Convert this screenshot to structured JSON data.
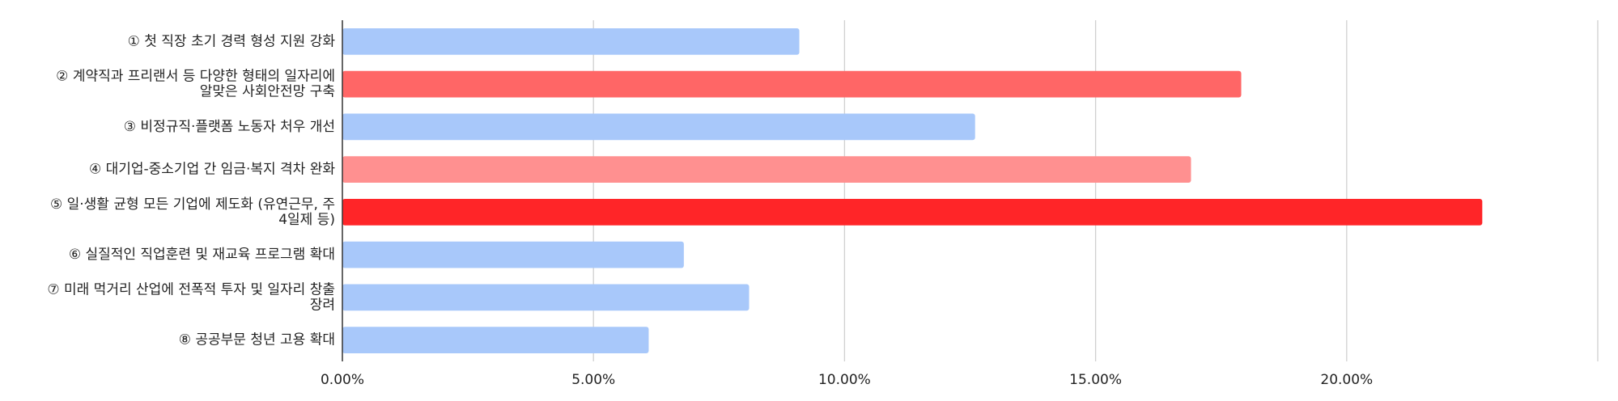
{
  "chart_data": {
    "type": "bar",
    "orientation": "horizontal",
    "title": "",
    "xlabel": "",
    "ylabel": "",
    "xlim": [
      0,
      25
    ],
    "grid": true,
    "legend": "none",
    "tick_values": [
      0,
      5,
      10,
      15,
      20
    ],
    "tick_labels": [
      "0.00%",
      "5.00%",
      "10.00%",
      "15.00%",
      "20.00%"
    ],
    "categories": [
      [
        "① 첫 직장 초기 경력 형성 지원 강화"
      ],
      [
        "② 계약직과 프리랜서 등 다양한 형태의 일자리에",
        "알맞은 사회안전망 구축"
      ],
      [
        "③ 비정규직·플랫폼 노동자 처우 개선"
      ],
      [
        "④ 대기업-중소기업 간 임금·복지 격차 완화"
      ],
      [
        "⑤ 일·생활 균형 모든 기업에 제도화 (유연근무, 주",
        "4일제 등)"
      ],
      [
        "⑥ 실질적인 직업훈련 및 재교육 프로그램 확대"
      ],
      [
        "⑦ 미래 먹거리 산업에 전폭적 투자 및 일자리 창출",
        "장려"
      ],
      [
        "⑧ 공공부문 청년 고용 확대"
      ]
    ],
    "values": [
      9.1,
      17.9,
      12.6,
      16.9,
      22.7,
      6.8,
      8.1,
      6.1
    ],
    "bar_colors": [
      "#a8c8fa",
      "#ff6666",
      "#a8c8fa",
      "#ff9090",
      "#ff2528",
      "#a8c8fa",
      "#a8c8fa",
      "#a8c8fa"
    ]
  }
}
